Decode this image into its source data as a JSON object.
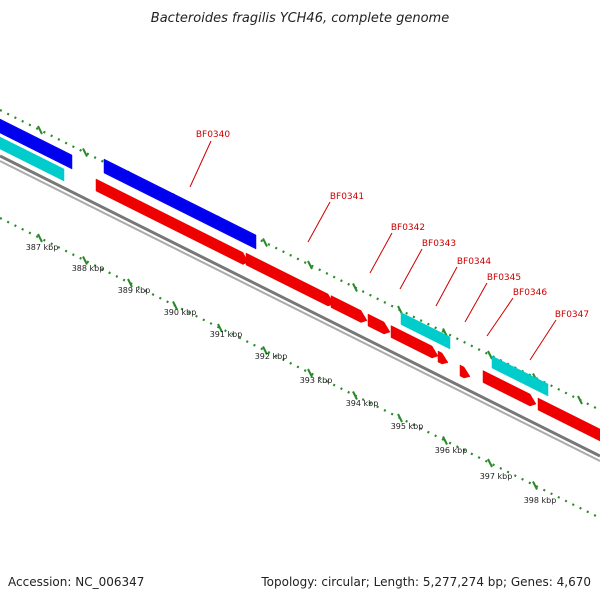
{
  "title": "Bacteroides fragilis YCH46, complete genome",
  "footer": {
    "accession": "Accession: NC_006347",
    "summary": "Topology: circular; Length: 5,277,274 bp; Genes: 4,670"
  },
  "colors": {
    "gene_label": "#cc0000",
    "forward_cds": "#0000ee",
    "reverse_cds": "#ee0000",
    "rna": "#00cccc",
    "backbone": "#888888",
    "dots": "#2a8a2a"
  },
  "ticks": [
    {
      "label": "387 kbp"
    },
    {
      "label": "388 kbp"
    },
    {
      "label": "389 kbp"
    },
    {
      "label": "390 kbp"
    },
    {
      "label": "391 kbp"
    },
    {
      "label": "392 kbp"
    },
    {
      "label": "393 kbp"
    },
    {
      "label": "394 kbp"
    },
    {
      "label": "395 kbp"
    },
    {
      "label": "396 kbp"
    },
    {
      "label": "397 kbp"
    },
    {
      "label": "398 kbp"
    }
  ],
  "gene_labels": [
    "BF0340",
    "BF0341",
    "BF0342",
    "BF0343",
    "BF0344",
    "BF0345",
    "BF0346",
    "BF0347"
  ],
  "features": [
    {
      "name": "blue-feature-left",
      "type": "forward_cds"
    },
    {
      "name": "cyan-feature-left",
      "type": "rna"
    },
    {
      "name": "blue-feature-bf0340",
      "type": "forward_cds"
    },
    {
      "name": "red-feature-bf0340",
      "type": "reverse_cds"
    },
    {
      "name": "red-feature-bf0341",
      "type": "reverse_cds"
    },
    {
      "name": "red-feature-bf0342",
      "type": "reverse_cds"
    },
    {
      "name": "red-feature-bf0343",
      "type": "reverse_cds"
    },
    {
      "name": "cyan-feature-bf0344",
      "type": "rna"
    },
    {
      "name": "red-feature-bf0344",
      "type": "reverse_cds"
    },
    {
      "name": "red-feature-bf0345",
      "type": "reverse_cds"
    },
    {
      "name": "red-feature-bf0346",
      "type": "reverse_cds"
    },
    {
      "name": "cyan-feature-bf0347",
      "type": "rna"
    },
    {
      "name": "red-feature-bf0347",
      "type": "reverse_cds"
    },
    {
      "name": "red-feature-right",
      "type": "reverse_cds"
    }
  ]
}
